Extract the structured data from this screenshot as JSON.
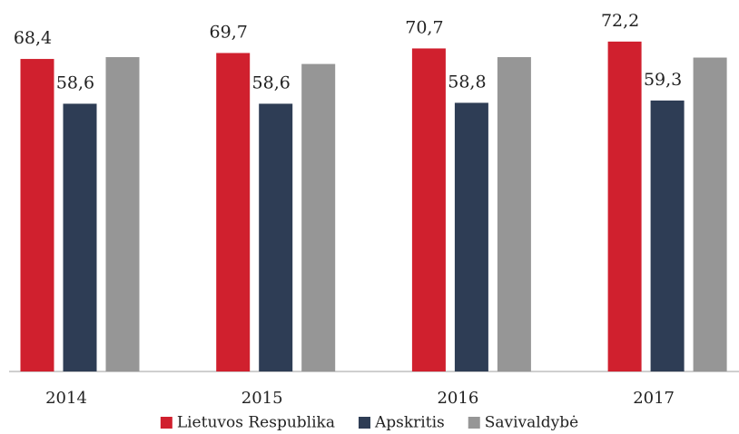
{
  "chart_data": {
    "type": "bar",
    "categories": [
      "2014",
      "2015",
      "2016",
      "2017"
    ],
    "series": [
      {
        "name": "Lietuvos Respublika",
        "color": "#d0202e",
        "values": [
          68.4,
          69.7,
          70.7,
          72.2
        ],
        "value_labels": [
          "68,4",
          "69,7",
          "70,7",
          "72,2"
        ]
      },
      {
        "name": "Apskritis",
        "color": "#2e3d55",
        "values": [
          58.6,
          58.6,
          58.8,
          59.3
        ],
        "value_labels": [
          "58,6",
          "58,6",
          "58,8",
          "59,3"
        ]
      },
      {
        "name": "Savivaldybė",
        "color": "#969696",
        "values": [
          68.8,
          67.3,
          68.8,
          68.7
        ]
      }
    ],
    "ylim": [
      0,
      81.3
    ],
    "legend": "bottom"
  }
}
